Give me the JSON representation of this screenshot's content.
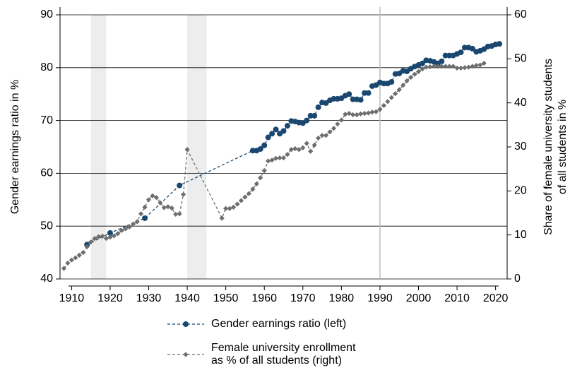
{
  "chart_data": {
    "type": "line",
    "ylabel": "Gender earnings ratio in %",
    "y2label": [
      "Share of female university students",
      "of all students in %"
    ],
    "xlim": [
      1907,
      2023
    ],
    "xticks": [
      1910,
      1920,
      1930,
      1940,
      1950,
      1960,
      1970,
      1980,
      1990,
      2000,
      2010,
      2020
    ],
    "ylim": [
      40,
      90
    ],
    "yticks": [
      40,
      50,
      60,
      70,
      80,
      90
    ],
    "y2lim": [
      0,
      60
    ],
    "y2ticks": [
      0,
      10,
      20,
      30,
      40,
      50,
      60
    ],
    "grid": true,
    "shaded_periods": [
      [
        1915,
        1919
      ],
      [
        1940,
        1945
      ]
    ],
    "vline": 1990,
    "series": [
      {
        "name": "Gender earnings ratio (left)",
        "color": "#1a476f",
        "marker": "circle",
        "x": [
          1914,
          1920,
          1929,
          1938,
          1957,
          1958,
          1959,
          1960,
          1961,
          1962,
          1963,
          1964,
          1965,
          1966,
          1967,
          1968,
          1969,
          1970,
          1971,
          1972,
          1973,
          1974,
          1975,
          1976,
          1977,
          1978,
          1979,
          1980,
          1981,
          1982,
          1983,
          1984,
          1985,
          1986,
          1987,
          1988,
          1989,
          1990,
          1991,
          1992,
          1993,
          1994,
          1995,
          1996,
          1997,
          1998,
          1999,
          2000,
          2001,
          2002,
          2003,
          2004,
          2005,
          2006,
          2007,
          2008,
          2009,
          2010,
          2011,
          2012,
          2013,
          2014,
          2015,
          2016,
          2017,
          2018,
          2019,
          2020,
          2021
        ],
        "values": [
          46.5,
          48.7,
          51.5,
          57.7,
          64.3,
          64.3,
          64.6,
          65.3,
          66.8,
          67.5,
          68.3,
          67.5,
          68.0,
          69.0,
          69.9,
          69.8,
          69.6,
          69.5,
          70.0,
          70.9,
          70.9,
          72.5,
          73.4,
          73.3,
          73.8,
          74.1,
          74.1,
          74.2,
          74.7,
          75.0,
          74.0,
          74.0,
          73.9,
          75.2,
          75.2,
          76.5,
          76.7,
          77.2,
          77.0,
          77.0,
          77.3,
          78.8,
          78.9,
          79.4,
          79.3,
          79.8,
          80.2,
          80.5,
          80.8,
          81.4,
          81.3,
          81.1,
          80.8,
          81.2,
          82.3,
          82.3,
          82.3,
          82.6,
          82.9,
          83.8,
          83.8,
          83.6,
          83.0,
          83.2,
          83.5,
          84.0,
          84.1,
          84.4,
          84.5
        ]
      },
      {
        "name": "Female university enrollment\nas % of all students (right)",
        "color": "#6e6e6e",
        "marker": "diamond",
        "axis": "y2",
        "x": [
          1908,
          1909,
          1910,
          1911,
          1912,
          1913,
          1914,
          1915,
          1916,
          1917,
          1918,
          1919,
          1920,
          1921,
          1922,
          1923,
          1924,
          1925,
          1926,
          1927,
          1928,
          1929,
          1930,
          1931,
          1932,
          1933,
          1934,
          1935,
          1936,
          1937,
          1938,
          1939,
          1940,
          1949,
          1950,
          1951,
          1952,
          1953,
          1954,
          1955,
          1956,
          1957,
          1958,
          1959,
          1960,
          1961,
          1962,
          1963,
          1964,
          1965,
          1966,
          1967,
          1968,
          1969,
          1970,
          1971,
          1972,
          1973,
          1974,
          1975,
          1976,
          1977,
          1978,
          1979,
          1980,
          1981,
          1982,
          1983,
          1984,
          1985,
          1986,
          1987,
          1988,
          1989,
          1990,
          1991,
          1992,
          1993,
          1994,
          1995,
          1996,
          1997,
          1998,
          1999,
          2000,
          2001,
          2002,
          2003,
          2004,
          2005,
          2006,
          2007,
          2008,
          2009,
          2010,
          2011,
          2012,
          2013,
          2014,
          2015,
          2016,
          2017
        ],
        "values": [
          2.4,
          3.6,
          4.3,
          4.8,
          5.4,
          6.0,
          7.3,
          8.4,
          9.2,
          9.6,
          9.7,
          9.2,
          9.5,
          9.8,
          10.3,
          11.0,
          11.4,
          11.8,
          12.5,
          13.0,
          14.8,
          16.3,
          18.0,
          18.9,
          18.5,
          17.3,
          16.2,
          16.4,
          16.1,
          14.7,
          14.8,
          19.2,
          29.4,
          13.8,
          16.0,
          16.0,
          16.3,
          17.0,
          17.8,
          18.6,
          19.4,
          20.4,
          21.6,
          23.0,
          24.6,
          26.8,
          27.0,
          27.4,
          27.5,
          27.5,
          28.3,
          29.4,
          29.6,
          29.4,
          29.8,
          30.8,
          29.0,
          30.4,
          32.0,
          32.6,
          32.6,
          33.4,
          34.2,
          35.2,
          36.1,
          37.4,
          37.6,
          37.3,
          37.3,
          37.5,
          37.6,
          37.7,
          37.9,
          38.0,
          38.5,
          39.4,
          40.3,
          41.2,
          42.1,
          43.0,
          44.0,
          45.0,
          45.8,
          46.5,
          47.1,
          47.7,
          48.1,
          48.2,
          48.3,
          48.3,
          48.3,
          48.3,
          48.3,
          48.3,
          47.9,
          47.9,
          48.0,
          48.1,
          48.3,
          48.5,
          48.6,
          49.0
        ]
      }
    ]
  }
}
